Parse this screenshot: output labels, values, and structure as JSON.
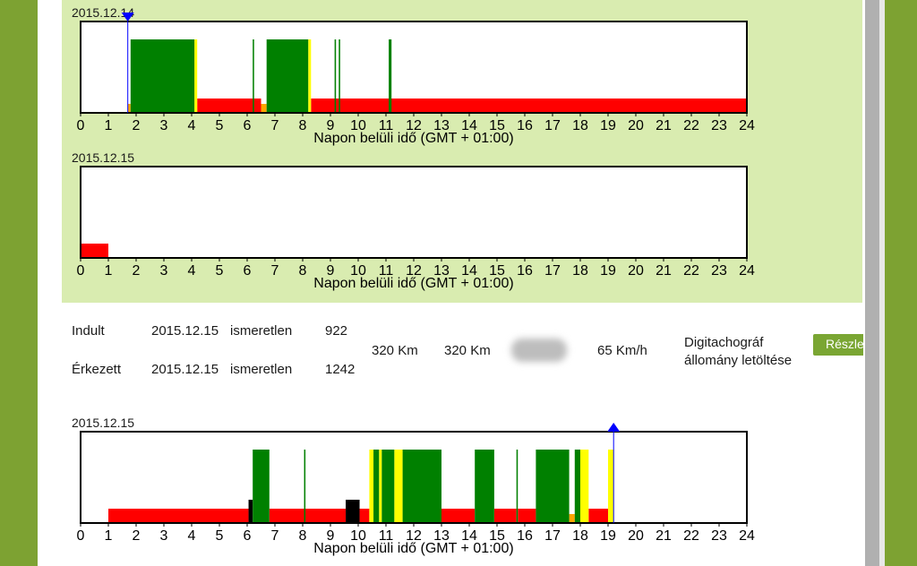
{
  "colors": {
    "drive": "#008000",
    "rest": "#ff0000",
    "work": "#ffff00",
    "available": "#ffa500",
    "unknown": "#000000",
    "marker": "#0000ff",
    "button": "#7aa633"
  },
  "charts": [
    {
      "date": "2015.12.14",
      "xlabel": "Napon belüli idő (GMT + 01:00)",
      "ticks": [
        "0",
        "1",
        "2",
        "3",
        "4",
        "5",
        "6",
        "7",
        "8",
        "9",
        "10",
        "11",
        "12",
        "13",
        "14",
        "15",
        "16",
        "17",
        "18",
        "19",
        "20",
        "21",
        "22",
        "23",
        "24"
      ],
      "marker": {
        "time": 1.7,
        "direction": "down"
      },
      "segments": [
        {
          "start": 1.7,
          "end": 1.8,
          "activity": "available"
        },
        {
          "start": 1.8,
          "end": 4.1,
          "activity": "drive"
        },
        {
          "start": 4.1,
          "end": 4.2,
          "activity": "work"
        },
        {
          "start": 4.2,
          "end": 6.5,
          "activity": "rest"
        },
        {
          "start": 6.2,
          "end": 6.25,
          "activity": "drive"
        },
        {
          "start": 6.5,
          "end": 6.7,
          "activity": "available"
        },
        {
          "start": 6.7,
          "end": 8.2,
          "activity": "drive"
        },
        {
          "start": 8.2,
          "end": 8.3,
          "activity": "work"
        },
        {
          "start": 8.3,
          "end": 24,
          "activity": "rest"
        },
        {
          "start": 9.15,
          "end": 9.2,
          "activity": "drive"
        },
        {
          "start": 9.3,
          "end": 9.35,
          "activity": "drive"
        },
        {
          "start": 11.1,
          "end": 11.2,
          "activity": "drive"
        }
      ]
    },
    {
      "date": "2015.12.15",
      "xlabel": "Napon belüli idő (GMT + 01:00)",
      "ticks": [
        "0",
        "1",
        "2",
        "3",
        "4",
        "5",
        "6",
        "7",
        "8",
        "9",
        "10",
        "11",
        "12",
        "13",
        "14",
        "15",
        "16",
        "17",
        "18",
        "19",
        "20",
        "21",
        "22",
        "23",
        "24"
      ],
      "marker": null,
      "segments": [
        {
          "start": 0,
          "end": 1,
          "activity": "rest"
        }
      ]
    },
    {
      "date": "2015.12.15",
      "xlabel": "Napon belüli idő (GMT + 01:00)",
      "ticks": [
        "0",
        "1",
        "2",
        "3",
        "4",
        "5",
        "6",
        "7",
        "8",
        "9",
        "10",
        "11",
        "12",
        "13",
        "14",
        "15",
        "16",
        "17",
        "18",
        "19",
        "20",
        "21",
        "22",
        "23",
        "24"
      ],
      "marker": {
        "time": 19.2,
        "direction": "up"
      },
      "segments": [
        {
          "start": 1.0,
          "end": 6.05,
          "activity": "rest"
        },
        {
          "start": 6.05,
          "end": 6.2,
          "activity": "unknown"
        },
        {
          "start": 6.2,
          "end": 6.8,
          "activity": "drive"
        },
        {
          "start": 6.8,
          "end": 9.55,
          "activity": "rest"
        },
        {
          "start": 8.05,
          "end": 8.1,
          "activity": "drive"
        },
        {
          "start": 9.55,
          "end": 10.05,
          "activity": "unknown"
        },
        {
          "start": 10.05,
          "end": 10.4,
          "activity": "rest"
        },
        {
          "start": 10.4,
          "end": 10.55,
          "activity": "work"
        },
        {
          "start": 10.55,
          "end": 10.75,
          "activity": "drive"
        },
        {
          "start": 10.75,
          "end": 10.85,
          "activity": "work"
        },
        {
          "start": 10.85,
          "end": 11.3,
          "activity": "drive"
        },
        {
          "start": 11.3,
          "end": 11.6,
          "activity": "work"
        },
        {
          "start": 11.6,
          "end": 13.0,
          "activity": "drive"
        },
        {
          "start": 13.0,
          "end": 14.2,
          "activity": "rest"
        },
        {
          "start": 14.2,
          "end": 14.9,
          "activity": "drive"
        },
        {
          "start": 14.9,
          "end": 15.7,
          "activity": "rest"
        },
        {
          "start": 15.7,
          "end": 15.75,
          "activity": "drive"
        },
        {
          "start": 15.75,
          "end": 16.4,
          "activity": "rest"
        },
        {
          "start": 16.4,
          "end": 17.6,
          "activity": "drive"
        },
        {
          "start": 17.6,
          "end": 17.8,
          "activity": "available"
        },
        {
          "start": 17.8,
          "end": 18.0,
          "activity": "drive"
        },
        {
          "start": 18.0,
          "end": 18.3,
          "activity": "work"
        },
        {
          "start": 18.3,
          "end": 19.0,
          "activity": "rest"
        },
        {
          "start": 19.0,
          "end": 19.2,
          "activity": "work"
        }
      ]
    }
  ],
  "trip": {
    "departed_label": "Indult",
    "departed_date": "2015.12.15",
    "departed_place": "ismeretlen",
    "departed_odometer": "922",
    "arrived_label": "Érkezett",
    "arrived_date": "2015.12.15",
    "arrived_place": "ismeretlen",
    "arrived_odometer": "1242",
    "distance": "320 Km",
    "distance2": "320 Km",
    "speed": "65 Km/h",
    "download_line1": "Digitachográf",
    "download_line2": "állomány letöltése",
    "details_label": "Részletek"
  }
}
